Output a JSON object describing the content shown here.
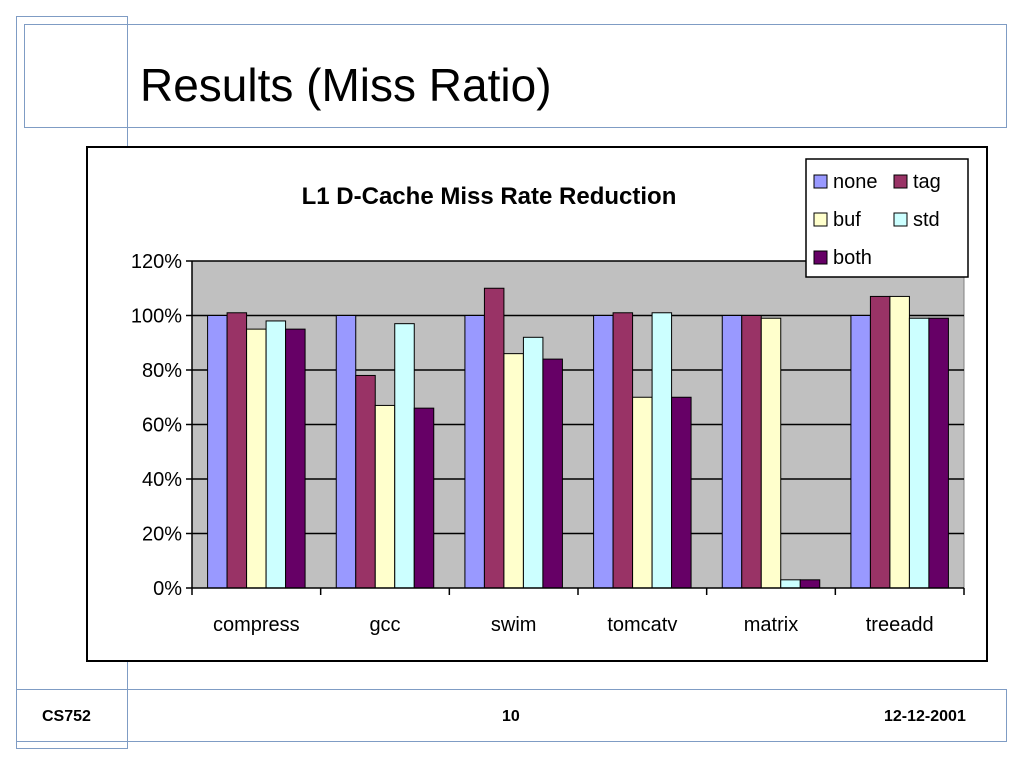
{
  "slide": {
    "title": "Results (Miss Ratio)",
    "footer_left": "CS752",
    "footer_center": "10",
    "footer_right": "12-12-2001"
  },
  "chart_data": {
    "type": "bar",
    "title": "L1 D-Cache Miss Rate Reduction",
    "categories": [
      "compress",
      "gcc",
      "swim",
      "tomcatv",
      "matrix",
      "treeadd"
    ],
    "series": [
      {
        "name": "none",
        "color": "#9999ff",
        "values": [
          100,
          100,
          100,
          100,
          100,
          100
        ]
      },
      {
        "name": "tag",
        "color": "#993366",
        "values": [
          101,
          78,
          110,
          101,
          100,
          107
        ]
      },
      {
        "name": "buf",
        "color": "#ffffcc",
        "values": [
          95,
          67,
          86,
          70,
          99,
          107
        ]
      },
      {
        "name": "std",
        "color": "#ccffff",
        "values": [
          98,
          97,
          92,
          101,
          3,
          99
        ]
      },
      {
        "name": "both",
        "color": "#660066",
        "values": [
          95,
          66,
          84,
          70,
          3,
          99
        ]
      }
    ],
    "yticks": [
      "0%",
      "20%",
      "40%",
      "60%",
      "80%",
      "100%",
      "120%"
    ],
    "ylim": [
      0,
      120
    ],
    "grid": true,
    "plot_background": "#c0c0c0",
    "legend_position": "top-right"
  }
}
